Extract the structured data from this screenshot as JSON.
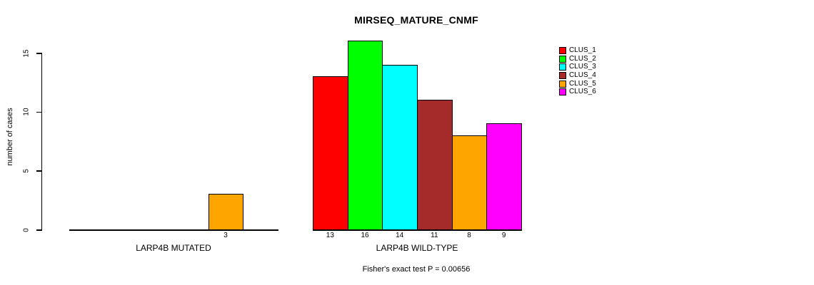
{
  "figure": {
    "background": "#FFFFFF",
    "line_color": "#000000"
  },
  "chart_data": {
    "type": "bar",
    "title": "MIRSEQ_MATURE_CNMF",
    "ylabel": "number of cases",
    "xlabel": "",
    "ylim": [
      0,
      15
    ],
    "yticks": [
      0,
      5,
      10,
      15
    ],
    "grid": false,
    "legend_position": "right-outside",
    "legend_items": [
      "CLUS_1",
      "CLUS_2",
      "CLUS_3",
      "CLUS_4",
      "CLUS_5",
      "CLUS_6"
    ],
    "colors": [
      "#FF0000",
      "#00FF00",
      "#00FFFF",
      "#A52A2A",
      "#FFA500",
      "#FF00FF"
    ],
    "groups": [
      {
        "label": "LARP4B MUTATED",
        "values": [
          0,
          0,
          0,
          0,
          3,
          0
        ],
        "bar_labels": [
          "",
          "",
          "",
          "",
          "3",
          ""
        ]
      },
      {
        "label": "LARP4B WILD-TYPE",
        "values": [
          13,
          16,
          14,
          11,
          8,
          9
        ],
        "bar_labels": [
          "13",
          "16",
          "14",
          "11",
          "8",
          "9"
        ]
      }
    ],
    "annotation": "Fisher's exact test P = 0.00656"
  }
}
